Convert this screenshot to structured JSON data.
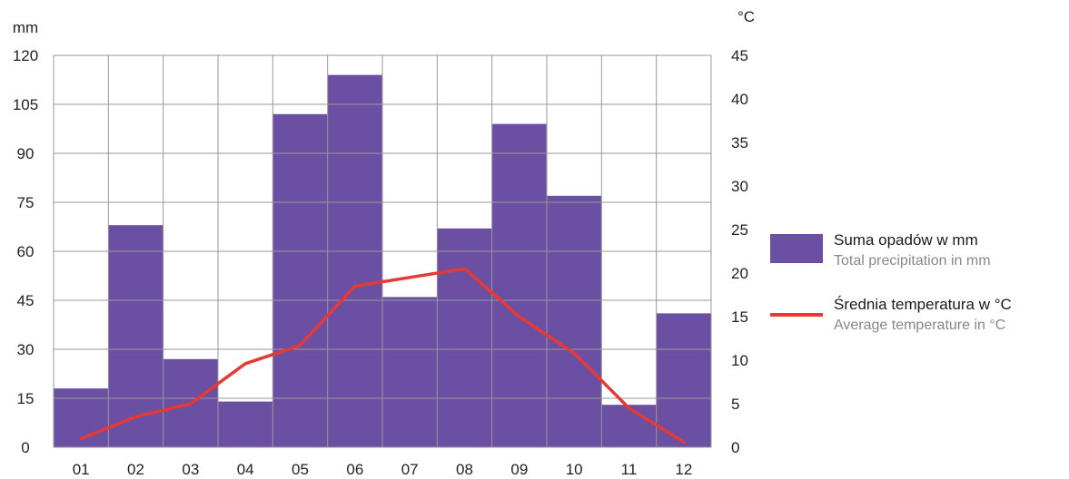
{
  "chart_data": {
    "type": "bar",
    "categories": [
      "01",
      "02",
      "03",
      "04",
      "05",
      "06",
      "07",
      "08",
      "09",
      "10",
      "11",
      "12"
    ],
    "series": [
      {
        "name": "Suma opadów w mm",
        "name_secondary": "Total precipitation in mm",
        "type": "bar",
        "axis": "left",
        "color": "#6b4fa3",
        "values": [
          18,
          68,
          27,
          14,
          102,
          114,
          46,
          67,
          99,
          77,
          13,
          41
        ]
      },
      {
        "name": "Średnia temperatura w °C",
        "name_secondary": "Average temperature in °C",
        "type": "line",
        "axis": "right",
        "color": "#e53935",
        "values": [
          1.0,
          3.5,
          5.0,
          9.6,
          11.7,
          18.5,
          19.5,
          20.5,
          15.0,
          10.8,
          4.5,
          0.6
        ]
      }
    ],
    "y_left": {
      "unit": "mm",
      "lim": [
        0,
        120
      ],
      "ticks": [
        "0",
        "15",
        "30",
        "45",
        "60",
        "75",
        "90",
        "105",
        "120"
      ]
    },
    "y_right": {
      "unit": "°C",
      "lim": [
        0,
        45
      ],
      "ticks": [
        "0",
        "5",
        "10",
        "15",
        "20",
        "25",
        "30",
        "35",
        "40",
        "45"
      ]
    },
    "grid": true,
    "legend_position": "right",
    "colors": {
      "bar": "#6b4fa3",
      "line": "#e53935",
      "grid": "#999999"
    }
  }
}
